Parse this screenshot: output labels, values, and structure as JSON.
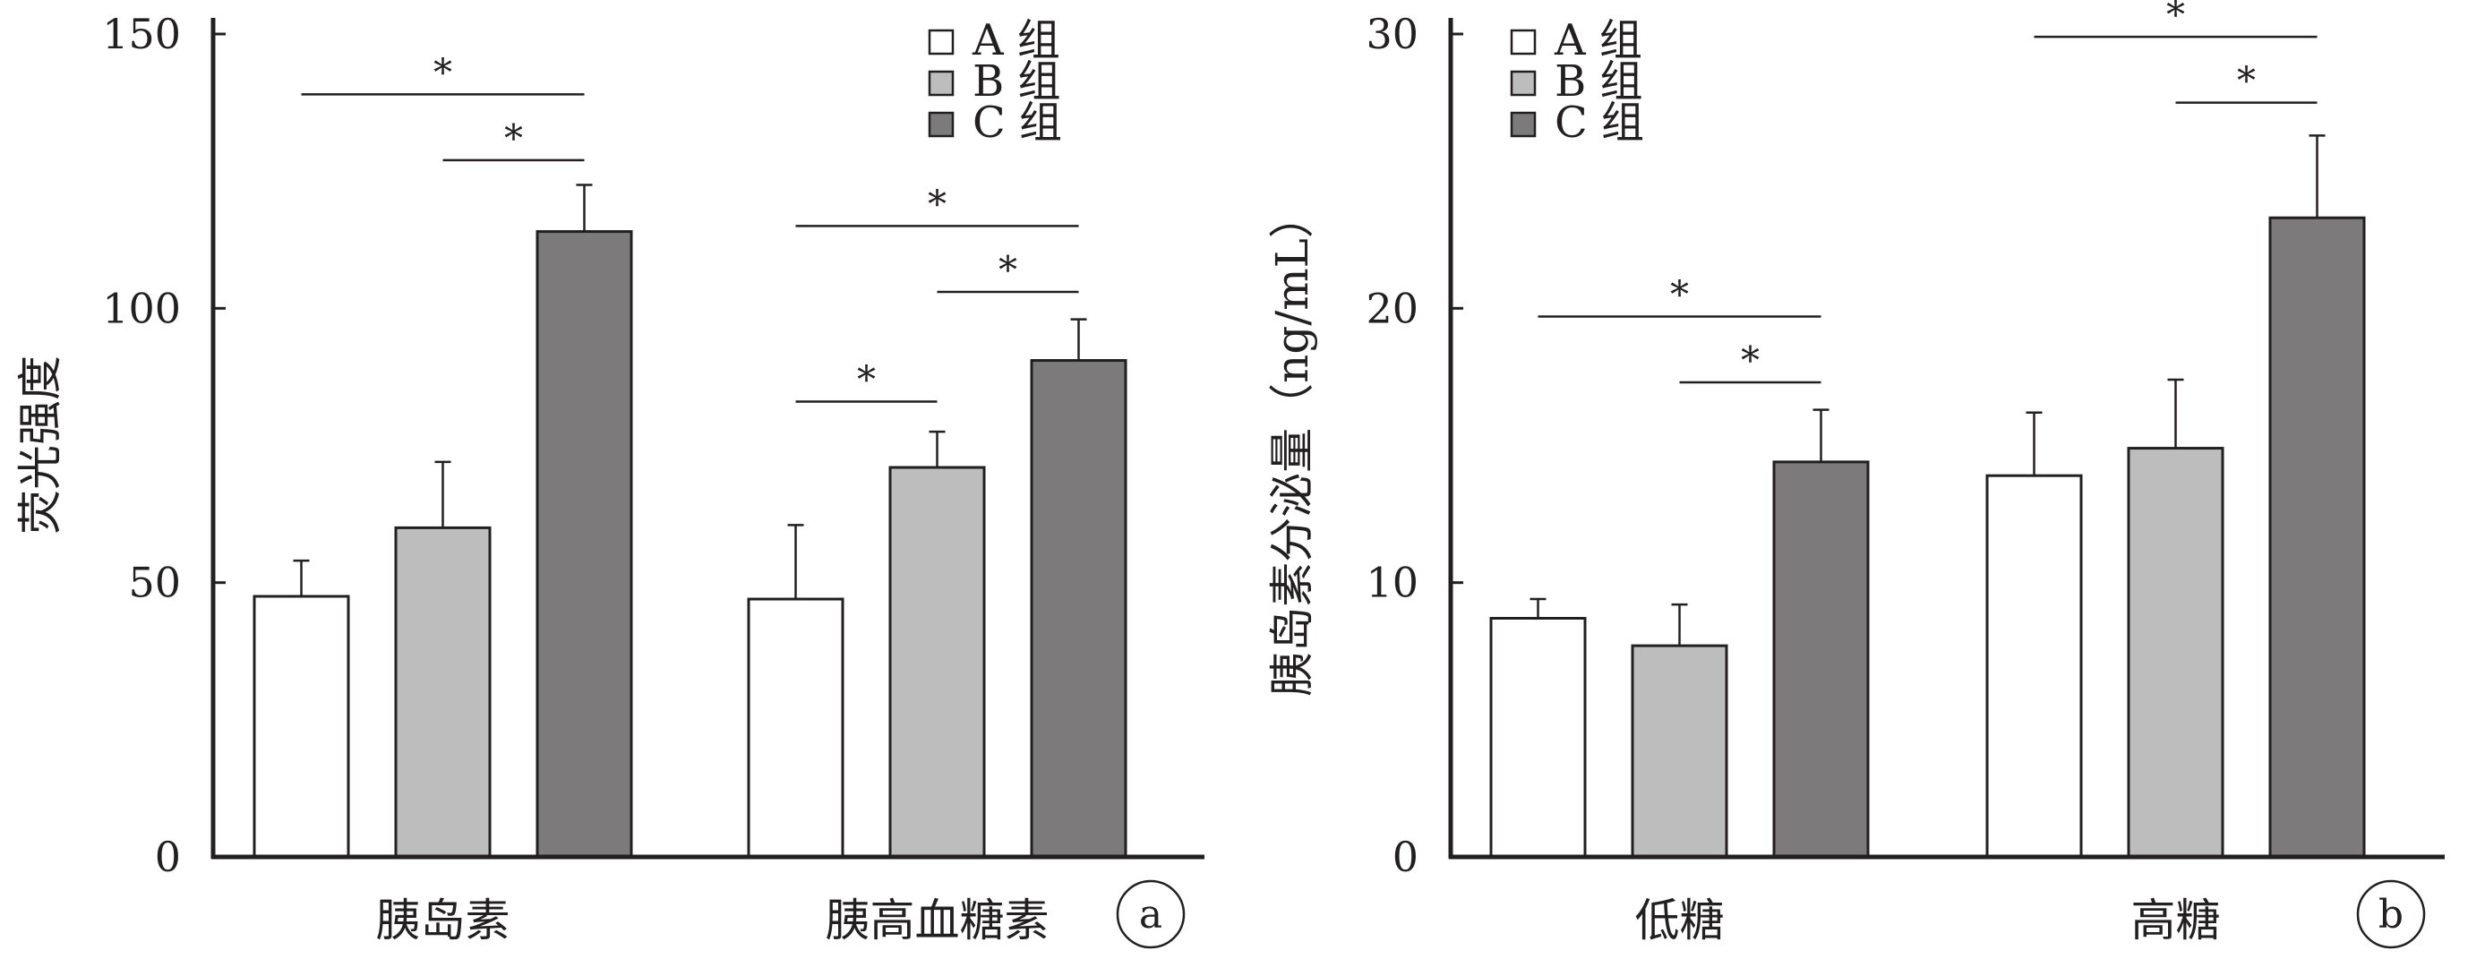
{
  "chart_data": [
    {
      "type": "bar",
      "panel_label": "a",
      "categories": [
        "胰岛素",
        "胰高血糖素"
      ],
      "series": [
        {
          "name": "A 组",
          "values": [
            47.5,
            47
          ],
          "errors": [
            6.5,
            13.5
          ]
        },
        {
          "name": "B 组",
          "values": [
            60,
            71
          ],
          "errors": [
            12,
            6.5
          ]
        },
        {
          "name": "C 组",
          "values": [
            114,
            90.5
          ],
          "errors": [
            8.5,
            7.5
          ]
        }
      ],
      "xlabel": "",
      "ylabel": "荧光强度",
      "ylim": [
        0,
        150
      ],
      "yticks": [
        0,
        50,
        100,
        150
      ],
      "grid": false,
      "legend_position": "top-right",
      "significance": [
        {
          "category": 0,
          "from_series": 0,
          "to_series": 2,
          "y": 139,
          "label": "*"
        },
        {
          "category": 0,
          "from_series": 1,
          "to_series": 2,
          "y": 127,
          "label": "*"
        },
        {
          "category": 1,
          "from_series": 0,
          "to_series": 2,
          "y": 115,
          "label": "*"
        },
        {
          "category": 1,
          "from_series": 1,
          "to_series": 2,
          "y": 103,
          "label": "*"
        },
        {
          "category": 1,
          "from_series": 0,
          "to_series": 1,
          "y": 83,
          "label": "*"
        }
      ]
    },
    {
      "type": "bar",
      "panel_label": "b",
      "categories": [
        "低糖",
        "高糖"
      ],
      "series": [
        {
          "name": "A 组",
          "values": [
            8.7,
            13.9
          ],
          "errors": [
            0.7,
            2.3
          ]
        },
        {
          "name": "B 组",
          "values": [
            7.7,
            14.9
          ],
          "errors": [
            1.5,
            2.5
          ]
        },
        {
          "name": "C 组",
          "values": [
            14.4,
            23.3
          ],
          "errors": [
            1.9,
            3
          ]
        }
      ],
      "xlabel": "",
      "ylabel": "胰岛素分泌量（ng/mL）",
      "ylim": [
        0,
        30
      ],
      "yticks": [
        0,
        10,
        20,
        30
      ],
      "grid": false,
      "legend_position": "top-left",
      "significance": [
        {
          "category": 0,
          "from_series": 0,
          "to_series": 2,
          "y": 19.7,
          "label": "*"
        },
        {
          "category": 0,
          "from_series": 1,
          "to_series": 2,
          "y": 17.3,
          "label": "*"
        },
        {
          "category": 1,
          "from_series": 0,
          "to_series": 2,
          "y": 29.9,
          "label": "*"
        },
        {
          "category": 1,
          "from_series": 1,
          "to_series": 2,
          "y": 27.5,
          "label": "*"
        }
      ]
    }
  ],
  "colors": {
    "series": [
      "#ffffff",
      "#bdbdbd",
      "#7c7a7b"
    ],
    "stroke": "#231f20",
    "text": "#231f20"
  }
}
